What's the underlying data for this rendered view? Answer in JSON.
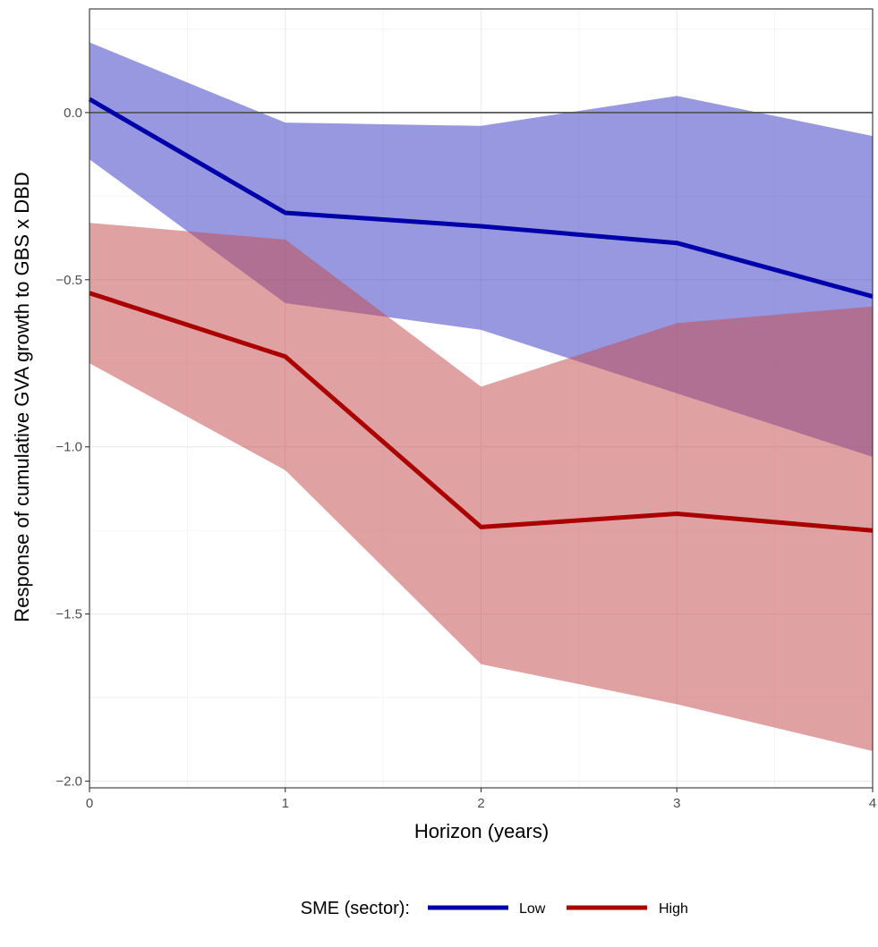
{
  "chart_data": {
    "type": "line",
    "title": "",
    "xlabel": "Horizon (years)",
    "ylabel": "Response of cumulative GVA growth to GBS x DBD",
    "x": [
      0,
      1,
      2,
      3,
      4
    ],
    "x_ticks": [
      "0",
      "1",
      "2",
      "3",
      "4"
    ],
    "y_ticks": [
      {
        "value": 0.0,
        "label": "0.0"
      },
      {
        "value": -0.5,
        "label": "-0.5"
      },
      {
        "value": -1.0,
        "label": "-1.0"
      },
      {
        "value": -1.5,
        "label": "-1.5"
      },
      {
        "value": -2.0,
        "label": "-2.0"
      }
    ],
    "xlim": [
      0,
      4
    ],
    "ylim": [
      -2.02,
      0.31
    ],
    "grid": true,
    "reference_line": 0,
    "legend": {
      "title": "SME (sector):",
      "position": "bottom"
    },
    "series": [
      {
        "name": "Low",
        "color": "#0000aa",
        "band_color": "#3a3ac4",
        "values": [
          0.04,
          -0.3,
          -0.34,
          -0.39,
          -0.55
        ],
        "lower": [
          -0.14,
          -0.57,
          -0.65,
          -0.84,
          -1.03
        ],
        "upper": [
          0.21,
          -0.03,
          -0.04,
          0.05,
          -0.07
        ]
      },
      {
        "name": "High",
        "color": "#aa0000",
        "band_color": "#c44a4f",
        "values": [
          -0.54,
          -0.73,
          -1.24,
          -1.2,
          -1.25
        ],
        "lower": [
          -0.75,
          -1.07,
          -1.65,
          -1.77,
          -1.91
        ],
        "upper": [
          -0.33,
          -0.38,
          -0.82,
          -0.63,
          -0.58
        ]
      }
    ]
  }
}
